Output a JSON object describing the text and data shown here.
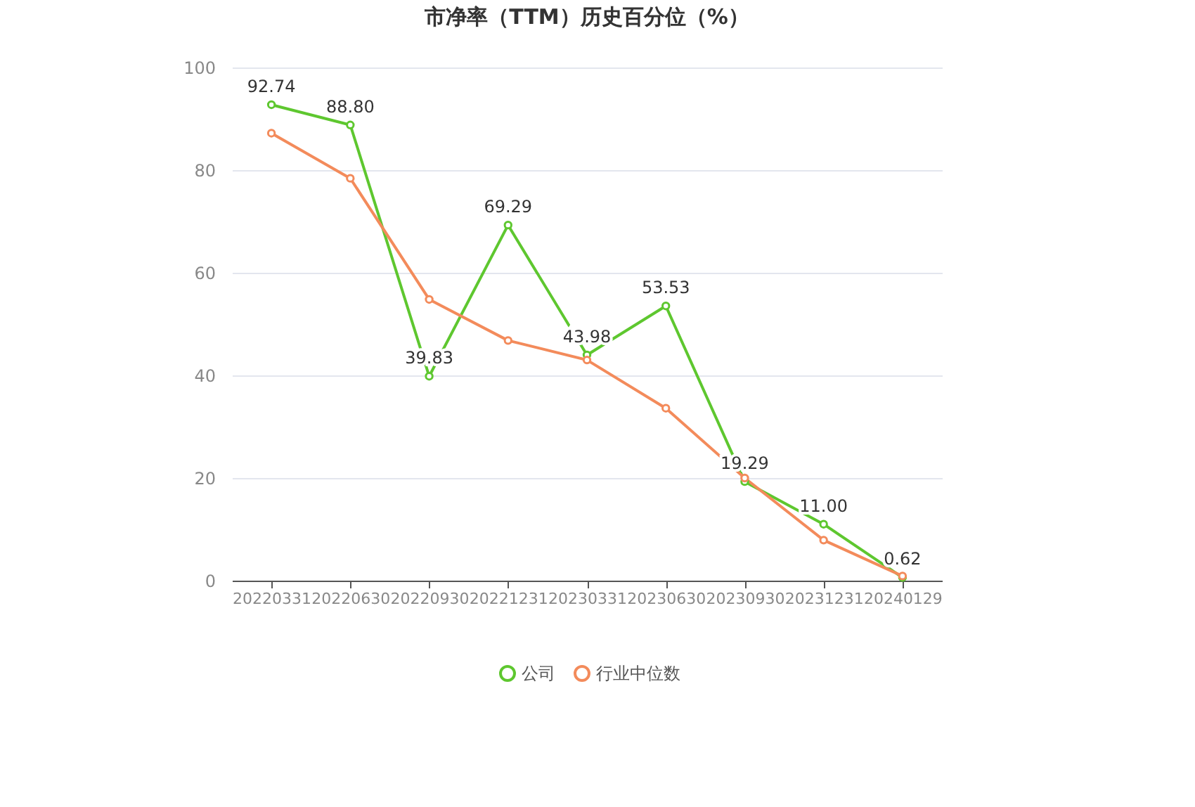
{
  "chart_data": {
    "type": "line",
    "title": "市净率（TTM）历史百分位（%）",
    "categories": [
      "20220331",
      "20220630",
      "20220930",
      "20221231",
      "20230331",
      "20230630",
      "20230930",
      "20231231",
      "20240129"
    ],
    "series": [
      {
        "name": "公司",
        "color": "#5ec72f",
        "values": [
          92.74,
          88.8,
          39.83,
          69.29,
          43.98,
          53.53,
          19.29,
          11.0,
          0.62
        ],
        "value_labels": [
          "92.74",
          "88.80",
          "39.83",
          "69.29",
          "43.98",
          "53.53",
          "19.29",
          "11.00",
          "0.62"
        ]
      },
      {
        "name": "行业中位数",
        "color": "#f38b5b",
        "values": [
          87.2,
          78.4,
          54.8,
          46.8,
          43.0,
          33.6,
          20.0,
          7.9,
          0.9
        ]
      }
    ],
    "ylim": [
      0,
      100
    ],
    "yticks": [
      0,
      20,
      40,
      60,
      80,
      100
    ],
    "grid": "y",
    "legend": "bottom",
    "marker": "circle",
    "line_style": "solid"
  }
}
